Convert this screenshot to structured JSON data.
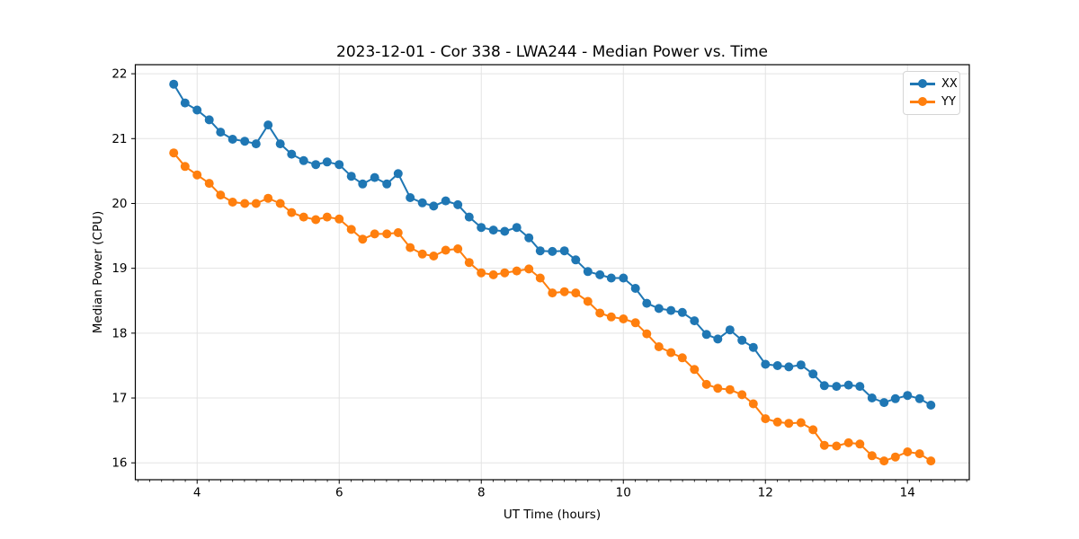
{
  "chart_data": {
    "type": "line",
    "title": "2023-12-01 - Cor 338 - LWA244 - Median Power vs. Time",
    "xlabel": "UT Time (hours)",
    "ylabel": "Median Power (CPU)",
    "xlim": [
      3.13,
      14.87
    ],
    "ylim": [
      15.74,
      22.14
    ],
    "x_ticks": [
      4,
      6,
      8,
      10,
      12,
      14
    ],
    "y_ticks": [
      16,
      17,
      18,
      19,
      20,
      21,
      22
    ],
    "x_minor_tick_step": 0.166667,
    "grid": true,
    "grid_color": "#e3e3e3",
    "legend_position": "upper right",
    "x": [
      3.67,
      3.83,
      4.0,
      4.17,
      4.33,
      4.5,
      4.67,
      4.83,
      5.0,
      5.17,
      5.33,
      5.5,
      5.67,
      5.83,
      6.0,
      6.17,
      6.33,
      6.5,
      6.67,
      6.83,
      7.0,
      7.17,
      7.33,
      7.5,
      7.67,
      7.83,
      8.0,
      8.17,
      8.33,
      8.5,
      8.67,
      8.83,
      9.0,
      9.17,
      9.33,
      9.5,
      9.67,
      9.83,
      10.0,
      10.17,
      10.33,
      10.5,
      10.67,
      10.83,
      11.0,
      11.17,
      11.33,
      11.5,
      11.67,
      11.83,
      12.0,
      12.17,
      12.33,
      12.5,
      12.67,
      12.83,
      13.0,
      13.17,
      13.33,
      13.5,
      13.67,
      13.83,
      14.0,
      14.17,
      14.33
    ],
    "series": [
      {
        "name": "XX",
        "color": "#1f77b4",
        "values": [
          21.84,
          21.55,
          21.44,
          21.29,
          21.1,
          20.99,
          20.96,
          20.92,
          21.21,
          20.92,
          20.76,
          20.66,
          20.6,
          20.64,
          20.6,
          20.42,
          20.3,
          20.4,
          20.3,
          20.46,
          20.09,
          20.01,
          19.96,
          20.04,
          19.98,
          19.79,
          19.63,
          19.59,
          19.57,
          19.63,
          19.47,
          19.27,
          19.26,
          19.27,
          19.13,
          18.95,
          18.9,
          18.85,
          18.85,
          18.69,
          18.46,
          18.38,
          18.35,
          18.32,
          18.19,
          17.98,
          17.91,
          18.05,
          17.89,
          17.78,
          17.52,
          17.5,
          17.48,
          17.51,
          17.37,
          17.19,
          17.18,
          17.2,
          17.18,
          17.0,
          16.93,
          16.99,
          17.04,
          16.99,
          16.89
        ]
      },
      {
        "name": "YY",
        "color": "#ff7f0e",
        "values": [
          20.78,
          20.57,
          20.44,
          20.31,
          20.13,
          20.02,
          20.0,
          20.0,
          20.08,
          20.0,
          19.86,
          19.79,
          19.75,
          19.79,
          19.76,
          19.6,
          19.45,
          19.53,
          19.53,
          19.55,
          19.32,
          19.22,
          19.19,
          19.28,
          19.3,
          19.09,
          18.93,
          18.9,
          18.93,
          18.96,
          18.99,
          18.85,
          18.62,
          18.64,
          18.62,
          18.49,
          18.31,
          18.25,
          18.22,
          18.16,
          17.99,
          17.79,
          17.7,
          17.62,
          17.44,
          17.21,
          17.15,
          17.13,
          17.05,
          16.91,
          16.68,
          16.63,
          16.61,
          16.62,
          16.51,
          16.27,
          16.26,
          16.31,
          16.29,
          16.11,
          16.03,
          16.09,
          16.17,
          16.14,
          16.03
        ]
      }
    ]
  }
}
